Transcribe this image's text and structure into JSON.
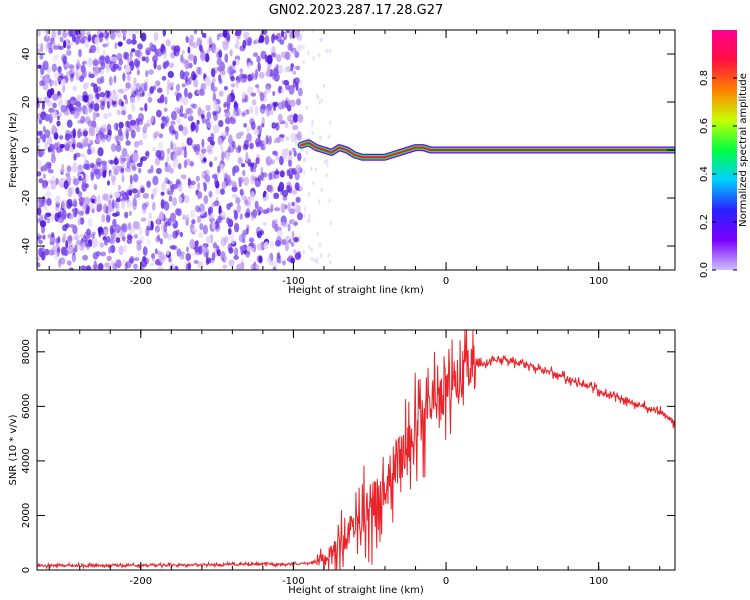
{
  "page": {
    "title": "GN02.2023.287.17.28.G27"
  },
  "colors": {
    "dots": [
      "#c9a8f2",
      "#9b6ae8",
      "#6b2ee6",
      "#4a0fd8",
      "#7a4df0",
      "#e3d3f8"
    ],
    "colorbar_stops": [
      "#ccc0ff",
      "#7a00ff",
      "#2a20ff",
      "#00d0ff",
      "#00ff40",
      "#c8ff00",
      "#ff8000",
      "#ff1040",
      "#ff0090"
    ],
    "snr_line": "#e8242a",
    "axis": "#000000"
  },
  "chart_data": [
    {
      "type": "heatmap",
      "title": "GN02.2023.287.17.28.G27",
      "xlabel": "Height of straight line (km)",
      "ylabel": "Frequency (Hz)",
      "xlim": [
        -268,
        150
      ],
      "ylim": [
        -50,
        50
      ],
      "xticks": [
        -200,
        -100,
        0,
        100
      ],
      "yticks": [
        -40,
        -20,
        0,
        20,
        40
      ],
      "noise_region_x": [
        -268,
        -95
      ],
      "tracks": [
        {
          "x": [
            -95,
            -90,
            -85,
            -80,
            -75,
            -70,
            -65,
            -60,
            -55,
            -50,
            -45,
            -40,
            -35,
            -30,
            -25,
            -20,
            -15,
            -10,
            -5,
            0,
            50,
            100,
            150
          ],
          "y": [
            2,
            3,
            1,
            0,
            -1,
            1,
            0,
            -2,
            -3,
            -3,
            -3,
            -3,
            -2,
            -1,
            0,
            1,
            1,
            0,
            0,
            0,
            0,
            0,
            0
          ]
        }
      ],
      "colorbar": {
        "label": "Normalized spectral amplitude",
        "ticks": [
          "0.0",
          "0.2",
          "0.4",
          "0.6",
          "0.8"
        ],
        "range": [
          0,
          1
        ]
      }
    },
    {
      "type": "line",
      "xlabel": "Height of straight line (km)",
      "ylabel": "SNR (10 * v/v)",
      "xlim": [
        -268,
        150
      ],
      "ylim": [
        0,
        8800
      ],
      "xticks": [
        -200,
        -100,
        0,
        100
      ],
      "yticks": [
        0,
        2000,
        4000,
        6000,
        8000
      ],
      "series": [
        {
          "x": [
            -268,
            -200,
            -150,
            -100,
            -90,
            -80,
            -75,
            -70,
            -65,
            -60,
            -55,
            -50,
            -45,
            -40,
            -35,
            -30,
            -25,
            -20,
            -15,
            -10,
            -5,
            0,
            10,
            20,
            30,
            40,
            50,
            60,
            70,
            80,
            90,
            100,
            105,
            110,
            120,
            130,
            140,
            150
          ],
          "y": [
            150,
            170,
            200,
            220,
            250,
            400,
            600,
            900,
            1300,
            1700,
            2000,
            2200,
            2600,
            3000,
            3600,
            4200,
            4700,
            5100,
            5500,
            5900,
            6300,
            6700,
            7200,
            7500,
            7700,
            7700,
            7600,
            7400,
            7200,
            7000,
            6800,
            6600,
            6400,
            6400,
            6200,
            6000,
            5800,
            5400
          ]
        }
      ]
    }
  ]
}
